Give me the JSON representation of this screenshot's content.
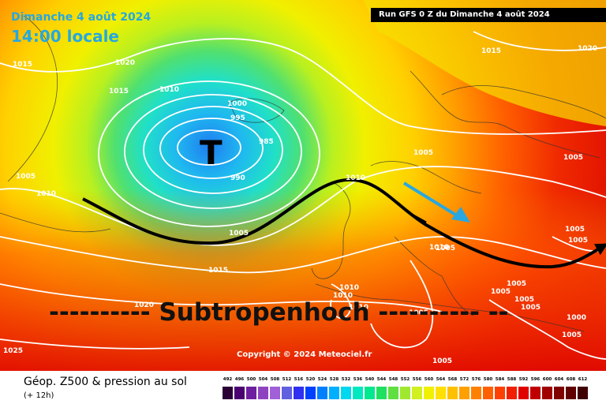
{
  "header": {
    "date": "Dimanche 4 août 2024",
    "time": "14:00 locale",
    "run": "Run GFS 0 Z du Dimanche 4 août 2024",
    "corner_number": "1015"
  },
  "map": {
    "low_symbol": "T",
    "annotation": "---------- Subtropenhoch ---------- --",
    "copyright": "Copyright © 2024 Meteociel.fr",
    "arrow_color": "#2aa7e0",
    "trough_line_color": "#000000",
    "isobar_color": "#ffffff",
    "isobar_labels": [
      "1015",
      "1020",
      "1015",
      "1010",
      "1000",
      "995",
      "985",
      "990",
      "1005",
      "1010",
      "1005",
      "1010",
      "1015",
      "1020",
      "1025",
      "1010",
      "1010",
      "1010",
      "1005",
      "1015",
      "1020",
      "1005",
      "1005",
      "1005",
      "1005",
      "1005",
      "1005",
      "1005",
      "1005",
      "1000",
      "1005",
      "1005",
      "1010",
      "1005"
    ]
  },
  "footer": {
    "title": "Géop. Z500 & pression au sol",
    "subtitle": "(+ 12h)"
  },
  "legend": {
    "labels": [
      "492",
      "496",
      "500",
      "504",
      "508",
      "512",
      "516",
      "520",
      "524",
      "528",
      "532",
      "536",
      "540",
      "544",
      "548",
      "552",
      "556",
      "560",
      "564",
      "568",
      "572",
      "576",
      "580",
      "584",
      "588",
      "592",
      "596",
      "600",
      "604",
      "608",
      "612"
    ],
    "colors": [
      "#2a0036",
      "#4a0070",
      "#6e1fa0",
      "#8e44c0",
      "#a060d8",
      "#6060e0",
      "#3030f0",
      "#0040ff",
      "#0080ff",
      "#00b0ff",
      "#00d8f0",
      "#00e8c0",
      "#00e890",
      "#20e060",
      "#60e040",
      "#a0e830",
      "#d0f020",
      "#f0f000",
      "#ffe000",
      "#ffc000",
      "#ffa000",
      "#ff8000",
      "#ff6000",
      "#ff4000",
      "#f02000",
      "#e00000",
      "#c00000",
      "#a00000",
      "#800000",
      "#600000",
      "#400000"
    ]
  }
}
